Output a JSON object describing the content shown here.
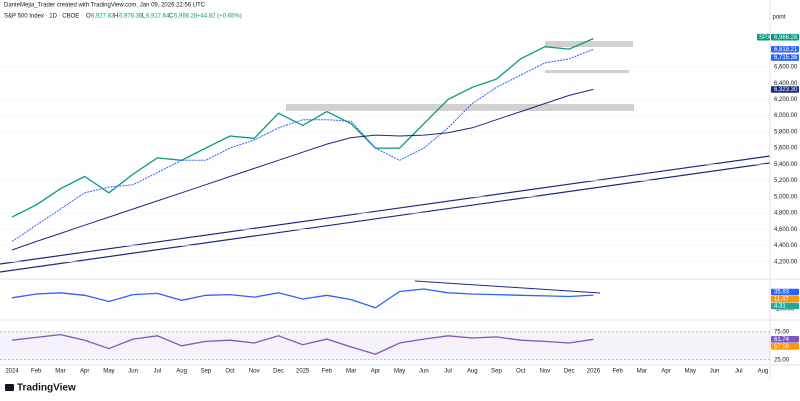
{
  "header": {
    "credit": "DanteMejia_Trader created with TradingView.com, Jan 09, 2026 22:56 UTC",
    "symbol": "S&P 500 Index · 1D · CBOE",
    "open_label": "O",
    "open": "6,927.83",
    "high_label": "H",
    "high": "6,978.36",
    "low_label": "L",
    "low": "6,917.64",
    "close_label": "C",
    "close": "6,966.28",
    "change": "+44.82 (+0.65%)",
    "scale_label": "point"
  },
  "footer": {
    "brand": "TradingView"
  },
  "chart_data": [
    {
      "type": "line",
      "categories": [
        "2024",
        "Feb",
        "Mar",
        "Apr",
        "May",
        "Jun",
        "Jul",
        "Aug",
        "Sep",
        "Oct",
        "Nov",
        "Dec",
        "2025",
        "Feb",
        "Mar",
        "Apr",
        "May",
        "Jun",
        "Jul",
        "Aug",
        "Sep",
        "Oct",
        "Nov",
        "Dec",
        "2026",
        "Feb",
        "Mar",
        "Apr",
        "May",
        "Jun",
        "Jul",
        "Aug"
      ],
      "series": [
        {
          "color": "#089981",
          "values": [
            4750,
            4900,
            5100,
            5250,
            5050,
            5280,
            5480,
            5450,
            5600,
            5750,
            5720,
            6030,
            5880,
            6050,
            5900,
            5600,
            5600,
            5900,
            6200,
            6350,
            6450,
            6700,
            6850,
            6820,
            6950,
            null,
            null,
            null,
            null,
            null,
            null,
            null
          ]
        },
        {
          "color": "#2962ff",
          "dashed": true,
          "values": [
            4450,
            4650,
            4850,
            5050,
            5120,
            5150,
            5300,
            5450,
            5450,
            5600,
            5700,
            5850,
            5950,
            5950,
            5930,
            5600,
            5450,
            5600,
            5850,
            6150,
            6350,
            6500,
            6650,
            6700,
            6818,
            null,
            null,
            null,
            null,
            null,
            null,
            null
          ]
        },
        {
          "color": "#1a2a80",
          "values": [
            4345,
            4450,
            4550,
            4650,
            4750,
            4850,
            4950,
            5050,
            5150,
            5250,
            5350,
            5450,
            5550,
            5650,
            5730,
            5760,
            5750,
            5760,
            5790,
            5850,
            5950,
            6050,
            6150,
            6250,
            6323,
            null,
            null,
            null,
            null,
            null,
            null,
            null
          ]
        }
      ],
      "ylim": [
        4000,
        7080
      ],
      "yticks": [
        {
          "value": 4200,
          "label": "4,200.00"
        },
        {
          "value": 4400,
          "label": "4,400.00"
        },
        {
          "value": 4600,
          "label": "4,600.00"
        },
        {
          "value": 4800,
          "label": "4,800.00"
        },
        {
          "value": 5000,
          "label": "5,000.00"
        },
        {
          "value": 5200,
          "label": "5,200.00"
        },
        {
          "value": 5400,
          "label": "5,400.00"
        },
        {
          "value": 5600,
          "label": "5,600.00"
        },
        {
          "value": 5800,
          "label": "5,800.00"
        },
        {
          "value": 6000,
          "label": "6,000.00"
        },
        {
          "value": 6200,
          "label": "6,200.00"
        },
        {
          "value": 6400,
          "label": "6,400.00"
        },
        {
          "value": 6600,
          "label": "6,600.00"
        }
      ],
      "tags": [
        {
          "title": "SPX",
          "value": 6966.28,
          "label": "6,966.28",
          "color": "#089981"
        },
        {
          "value": 6818.21,
          "label": "6,818.21",
          "color": "#2962ff"
        },
        {
          "value": 6715.36,
          "label": "6,715.36",
          "color": "#2962ff"
        },
        {
          "value": 6323.3,
          "label": "6,323.30",
          "color": "#1a2a80"
        }
      ]
    },
    {
      "type": "line",
      "series": [
        {
          "color": "#2962ff",
          "values": [
            -10,
            20,
            30,
            10,
            -40,
            15,
            25,
            -30,
            10,
            15,
            -5,
            30,
            -20,
            10,
            -25,
            -90,
            40,
            60,
            30,
            20,
            15,
            10,
            5,
            0,
            11.47,
            null,
            null,
            null,
            null,
            null,
            null,
            null
          ]
        }
      ],
      "ylim": [
        -124,
        116
      ],
      "yticks": [
        {
          "value": -100,
          "label": "-100.00"
        }
      ],
      "tags": [
        {
          "value": 35.93,
          "label": "35.93",
          "color": "#2962ff"
        },
        {
          "value": 11.47,
          "label": "11.47",
          "color": "#ff9800"
        },
        {
          "value": 4.31,
          "label": "4.31",
          "color": "#26a69a"
        }
      ]
    },
    {
      "type": "line",
      "series": [
        {
          "color": "#7e57c2",
          "values": [
            60,
            65,
            70,
            60,
            45,
            62,
            68,
            50,
            58,
            60,
            55,
            68,
            52,
            62,
            48,
            35,
            55,
            62,
            68,
            64,
            66,
            60,
            58,
            55,
            61.74,
            null,
            null,
            null,
            null,
            null,
            null,
            null
          ]
        }
      ],
      "ylim": [
        14,
        89
      ],
      "yticks": [
        {
          "value": 25,
          "label": "25.00"
        },
        {
          "value": 75,
          "label": "75.00"
        }
      ],
      "band": [
        25,
        75
      ],
      "tags": [
        {
          "value": 61.74,
          "label": "61.74",
          "color": "#7e57c2"
        },
        {
          "value": 57.56,
          "label": "57.56",
          "color": "#ff9800"
        }
      ]
    }
  ]
}
